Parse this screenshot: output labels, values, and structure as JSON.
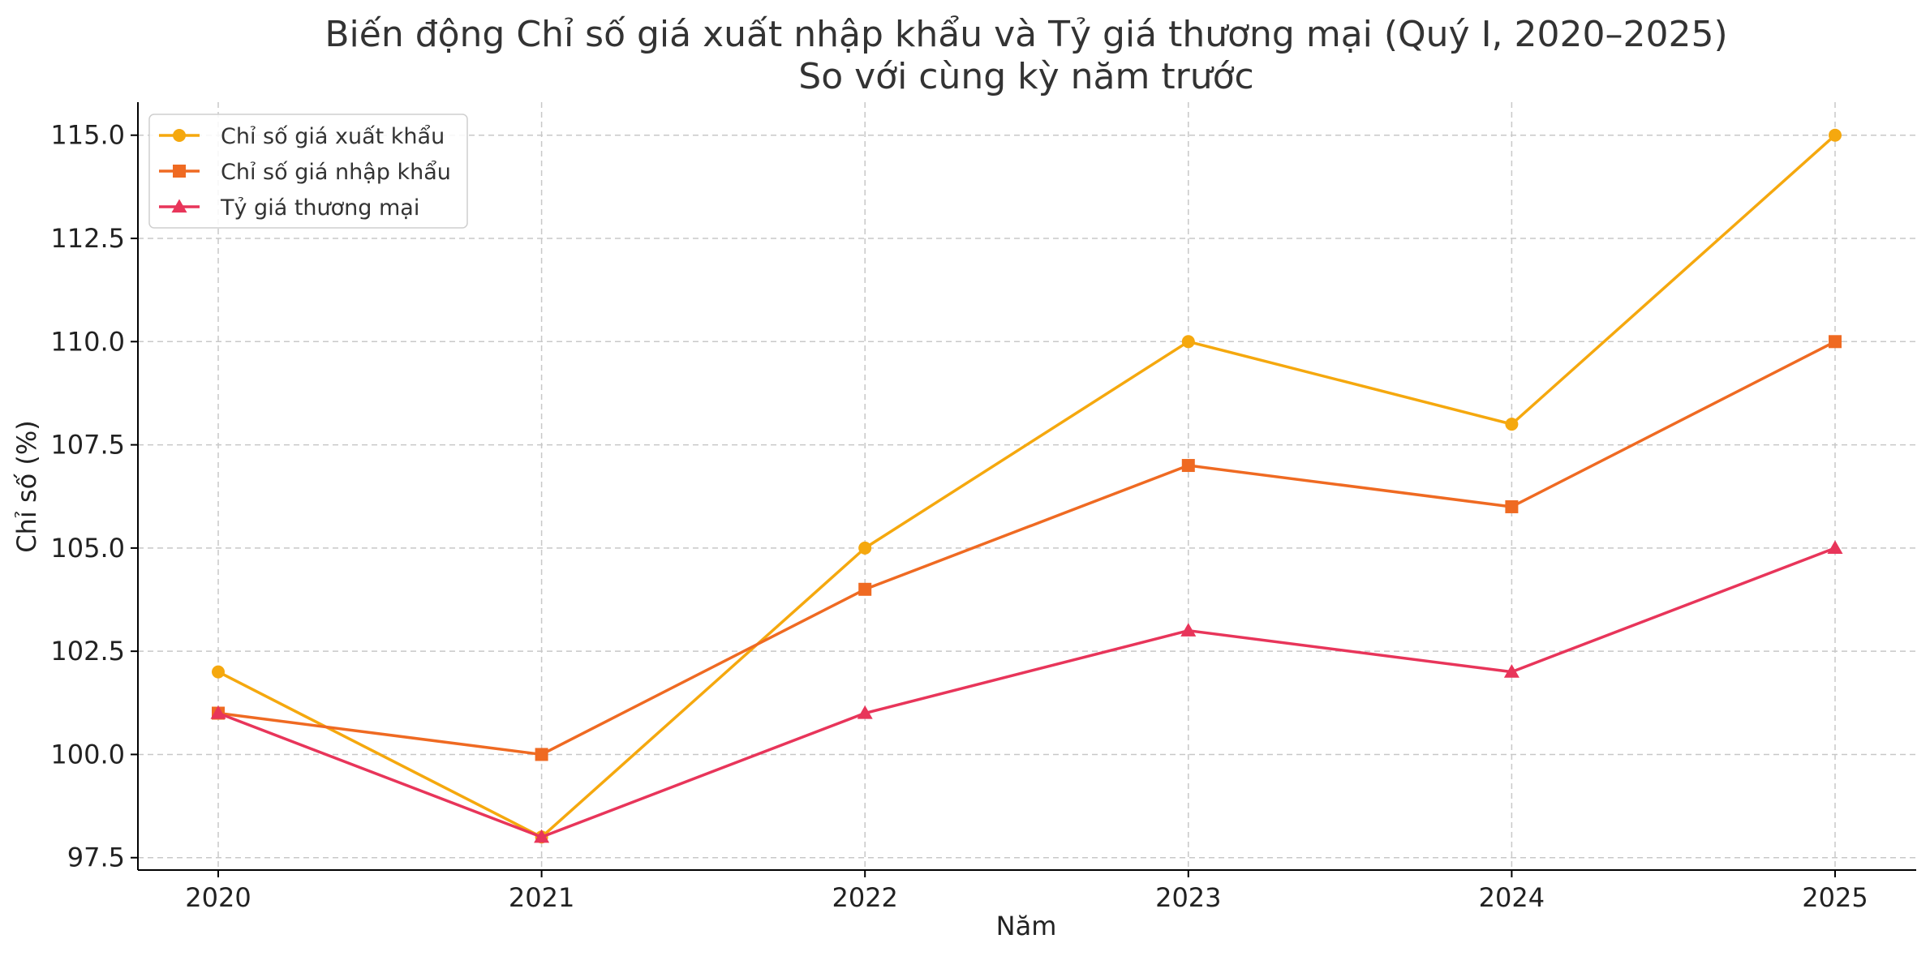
{
  "chart_data": {
    "type": "line",
    "title": "Biến động Chỉ số giá xuất nhập khẩu và Tỷ giá thương mại (Quý I, 2020–2025)",
    "subtitle": "So với cùng kỳ năm trước",
    "xlabel": "Năm",
    "ylabel": "Chỉ số (%)",
    "x": [
      "2020",
      "2021",
      "2022",
      "2023",
      "2024",
      "2025"
    ],
    "ylim": [
      97.2,
      115.8
    ],
    "yticks": [
      "97.5",
      "100.0",
      "102.5",
      "105.0",
      "107.5",
      "110.0",
      "112.5",
      "115.0"
    ],
    "grid": true,
    "legend_position": "top-left",
    "series": [
      {
        "name": "Chỉ số giá xuất khẩu",
        "values": [
          102,
          98,
          105,
          110,
          108,
          115
        ],
        "color": "#f5a80e",
        "marker": "circle"
      },
      {
        "name": "Chỉ số giá nhập khẩu",
        "values": [
          101,
          100,
          104,
          107,
          106,
          110
        ],
        "color": "#ef6a22",
        "marker": "square"
      },
      {
        "name": "Tỷ giá thương mại",
        "values": [
          101,
          98,
          101,
          103,
          102,
          105
        ],
        "color": "#e8355a",
        "marker": "triangle"
      }
    ]
  }
}
